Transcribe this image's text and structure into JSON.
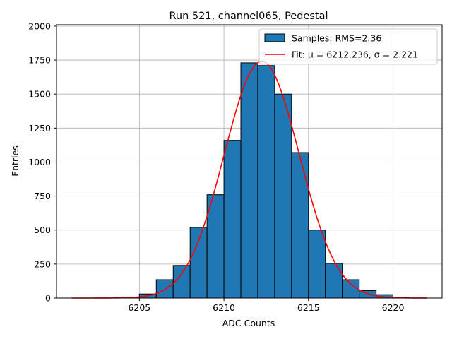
{
  "chart_data": {
    "type": "bar",
    "title": "Run 521, channel065, Pedestal",
    "xlabel": "ADC Counts",
    "ylabel": "Entries",
    "xlim": [
      6200.1,
      6222.9
    ],
    "ylim": [
      0,
      2010
    ],
    "grid": true,
    "legend_position": "top-right",
    "xticks": [
      6205,
      6210,
      6215,
      6220
    ],
    "yticks": [
      0,
      250,
      500,
      750,
      1000,
      1250,
      1500,
      1750,
      2000
    ],
    "histogram": {
      "name": "Samples: RMS=2.36",
      "color": "#1f77b4",
      "bin_edges": [
        6204,
        6205,
        6206,
        6207,
        6208,
        6209,
        6210,
        6211,
        6212,
        6213,
        6214,
        6215,
        6216,
        6217,
        6218,
        6219,
        6220
      ],
      "counts": [
        8,
        30,
        135,
        240,
        520,
        760,
        1160,
        1730,
        1710,
        1500,
        1070,
        500,
        255,
        135,
        55,
        25
      ]
    },
    "fit": {
      "name": "Fit: μ = 6212.236, σ = 2.221",
      "color": "#ff0000",
      "mu": 6212.236,
      "sigma": 2.221,
      "amplitude": 1740,
      "x_range": [
        6201,
        6222
      ]
    },
    "legend": [
      {
        "label": "Samples: RMS=2.36",
        "kind": "patch",
        "color": "#1f77b4"
      },
      {
        "label": "Fit: μ = 6212.236, σ = 2.221",
        "kind": "line",
        "color": "#ff0000"
      }
    ]
  }
}
